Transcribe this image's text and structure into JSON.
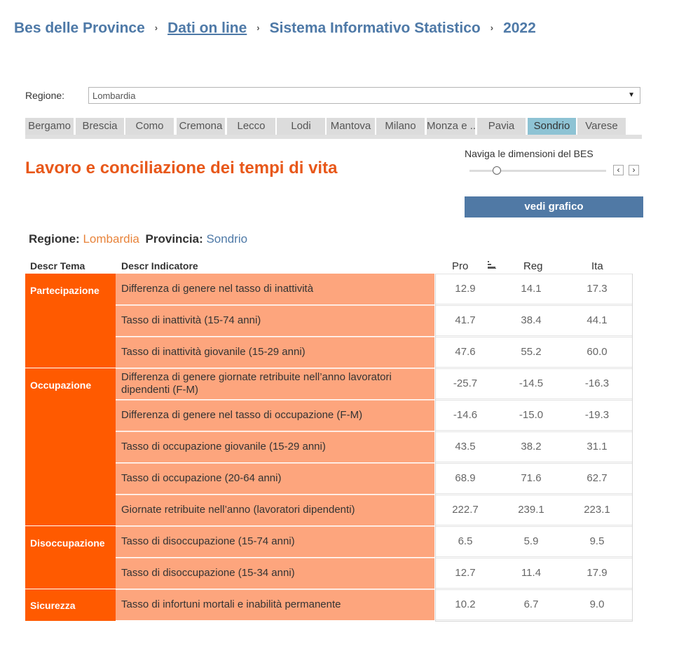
{
  "breadcrumb": {
    "items": [
      "Bes delle Province",
      "Dati on line",
      "Sistema Informativo Statistico",
      "2022"
    ],
    "separator": "›"
  },
  "filter": {
    "label": "Regione:",
    "value": "Lombardia"
  },
  "province_tabs": [
    "Bergamo",
    "Brescia",
    "Como",
    "Cremona",
    "Lecco",
    "Lodi",
    "Mantova",
    "Milano",
    "Monza e ..",
    "Pavia",
    "Sondrio",
    "Varese"
  ],
  "active_tab": "Sondrio",
  "section_title": "Lavoro e conciliazione dei tempi di vita",
  "navigator": {
    "label": "Naviga le dimensioni del BES",
    "prev": "‹",
    "next": "›",
    "slider_position": 0.2
  },
  "vedi_button": "vedi grafico",
  "selection": {
    "region_label": "Regione:",
    "region_value": "Lombardia",
    "province_label": "Provincia:",
    "province_value": "Sondrio"
  },
  "columns": {
    "tema": "Descr Tema",
    "indicatore": "Descr Indicatore",
    "pro": "Pro",
    "reg": "Reg",
    "ita": "Ita"
  },
  "themes": [
    "Partecipazione",
    "Occupazione",
    "Disoccupazione",
    "Sicurezza"
  ],
  "rows": [
    {
      "indicator": "Differenza di genere nel tasso di inattività",
      "pro": "12.9",
      "reg": "14.1",
      "ita": "17.3"
    },
    {
      "indicator": "Tasso di inattività (15-74 anni)",
      "pro": "41.7",
      "reg": "38.4",
      "ita": "44.1"
    },
    {
      "indicator": "Tasso di inattività giovanile (15-29 anni)",
      "pro": "47.6",
      "reg": "55.2",
      "ita": "60.0"
    },
    {
      "indicator": "Differenza di genere giornate retribuite nell’anno lavoratori dipendenti (F-M)",
      "pro": "-25.7",
      "reg": "-14.5",
      "ita": "-16.3"
    },
    {
      "indicator": "Differenza di genere nel tasso di occupazione (F-M)",
      "pro": "-14.6",
      "reg": "-15.0",
      "ita": "-19.3"
    },
    {
      "indicator": "Tasso di occupazione giovanile (15-29 anni)",
      "pro": "43.5",
      "reg": "38.2",
      "ita": "31.1"
    },
    {
      "indicator": "Tasso di occupazione (20-64 anni)",
      "pro": "68.9",
      "reg": "71.6",
      "ita": "62.7"
    },
    {
      "indicator": "Giornate retribuite nell’anno (lavoratori dipendenti)",
      "pro": "222.7",
      "reg": "239.1",
      "ita": "223.1"
    },
    {
      "indicator": "Tasso di disoccupazione (15-74 anni)",
      "pro": "6.5",
      "reg": "5.9",
      "ita": "9.5"
    },
    {
      "indicator": "Tasso di disoccupazione (15-34 anni)",
      "pro": "12.7",
      "reg": "11.4",
      "ita": "17.9"
    },
    {
      "indicator": "Tasso di infortuni mortali e inabilità permanente",
      "pro": "10.2",
      "reg": "6.7",
      "ita": "9.0"
    }
  ],
  "colors": {
    "link": "#4e79a7",
    "title": "#e8581a",
    "theme_cell": "#ff5a00",
    "indicator_cell": "#fda57d",
    "active_tab": "#8ec3d4",
    "button": "#5079a5"
  }
}
